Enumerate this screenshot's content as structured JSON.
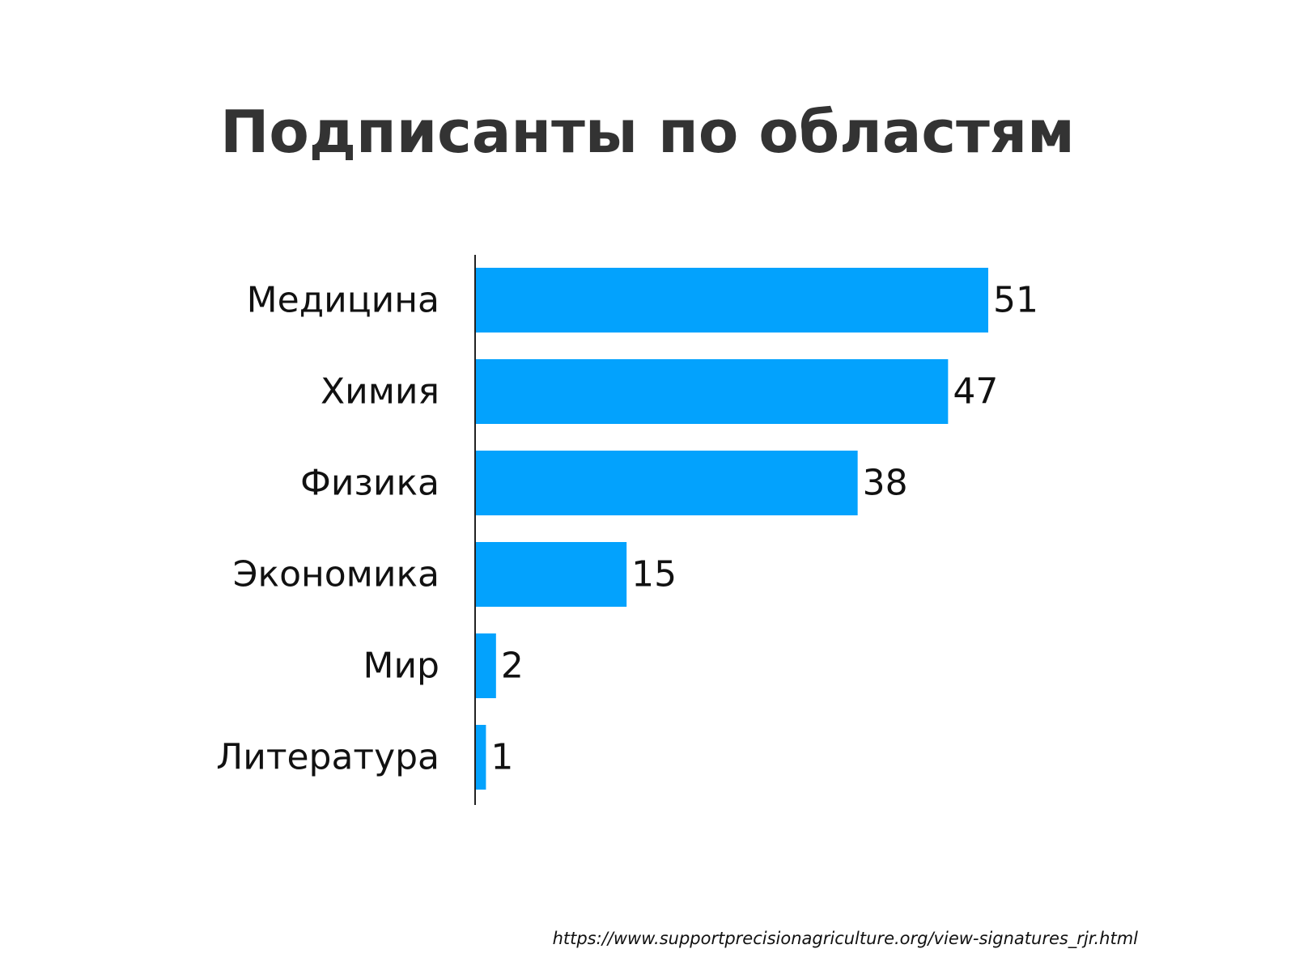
{
  "chart_data": {
    "type": "bar",
    "orientation": "horizontal",
    "title": "Подписанты по областям",
    "categories": [
      "Медицина",
      "Химия",
      "Физика",
      "Экономика",
      "Мир",
      "Литература"
    ],
    "values": [
      51,
      47,
      38,
      15,
      2,
      1
    ],
    "data_labels": [
      "51",
      "47",
      "38",
      "15",
      "2",
      "1"
    ],
    "bar_color": "#03a2fd",
    "xlim": [
      0,
      51
    ],
    "grid": false,
    "legend": "none"
  },
  "source": {
    "text": "https://www.supportprecisionagriculture.org/view-signatures_rjr.html"
  }
}
